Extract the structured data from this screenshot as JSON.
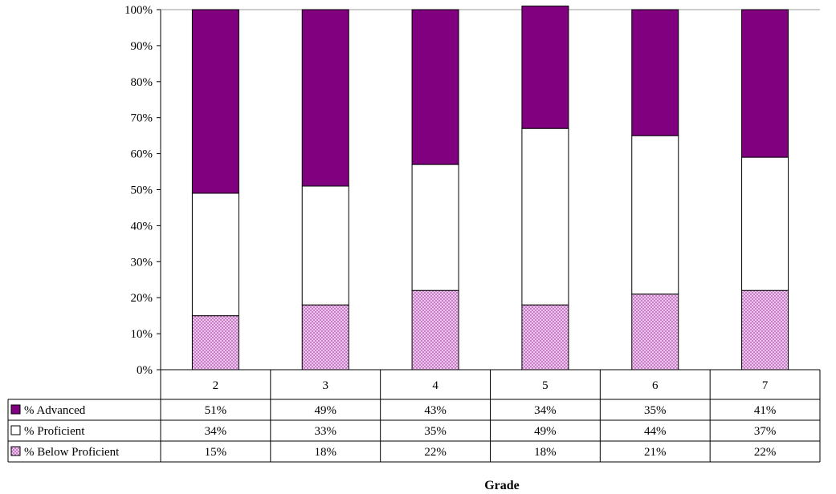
{
  "chart_data": {
    "type": "bar",
    "stacked": true,
    "percent": true,
    "categories": [
      "2",
      "3",
      "4",
      "5",
      "6",
      "7"
    ],
    "series": [
      {
        "name": "% Below Proficient",
        "values": [
          15,
          18,
          22,
          18,
          21,
          22
        ],
        "labels": [
          "15%",
          "18%",
          "22%",
          "18%",
          "21%",
          "22%"
        ],
        "color": "#e6a8e6",
        "pattern": "dotted"
      },
      {
        "name": "% Proficient",
        "values": [
          34,
          33,
          35,
          49,
          44,
          37
        ],
        "labels": [
          "34%",
          "33%",
          "35%",
          "49%",
          "44%",
          "37%"
        ],
        "color": "#ffffff"
      },
      {
        "name": "% Advanced",
        "values": [
          51,
          49,
          43,
          34,
          35,
          41
        ],
        "labels": [
          "51%",
          "49%",
          "43%",
          "34%",
          "35%",
          "41%"
        ],
        "color": "#800080"
      }
    ],
    "table_row_order": [
      "% Advanced",
      "% Proficient",
      "% Below Proficient"
    ],
    "yticks": [
      "0%",
      "10%",
      "20%",
      "30%",
      "40%",
      "50%",
      "60%",
      "70%",
      "80%",
      "90%",
      "100%"
    ],
    "ylim": [
      0,
      100
    ],
    "xlabel": "Grade",
    "ylabel": "",
    "title": "",
    "legend": "data-table-left",
    "grid": false
  }
}
